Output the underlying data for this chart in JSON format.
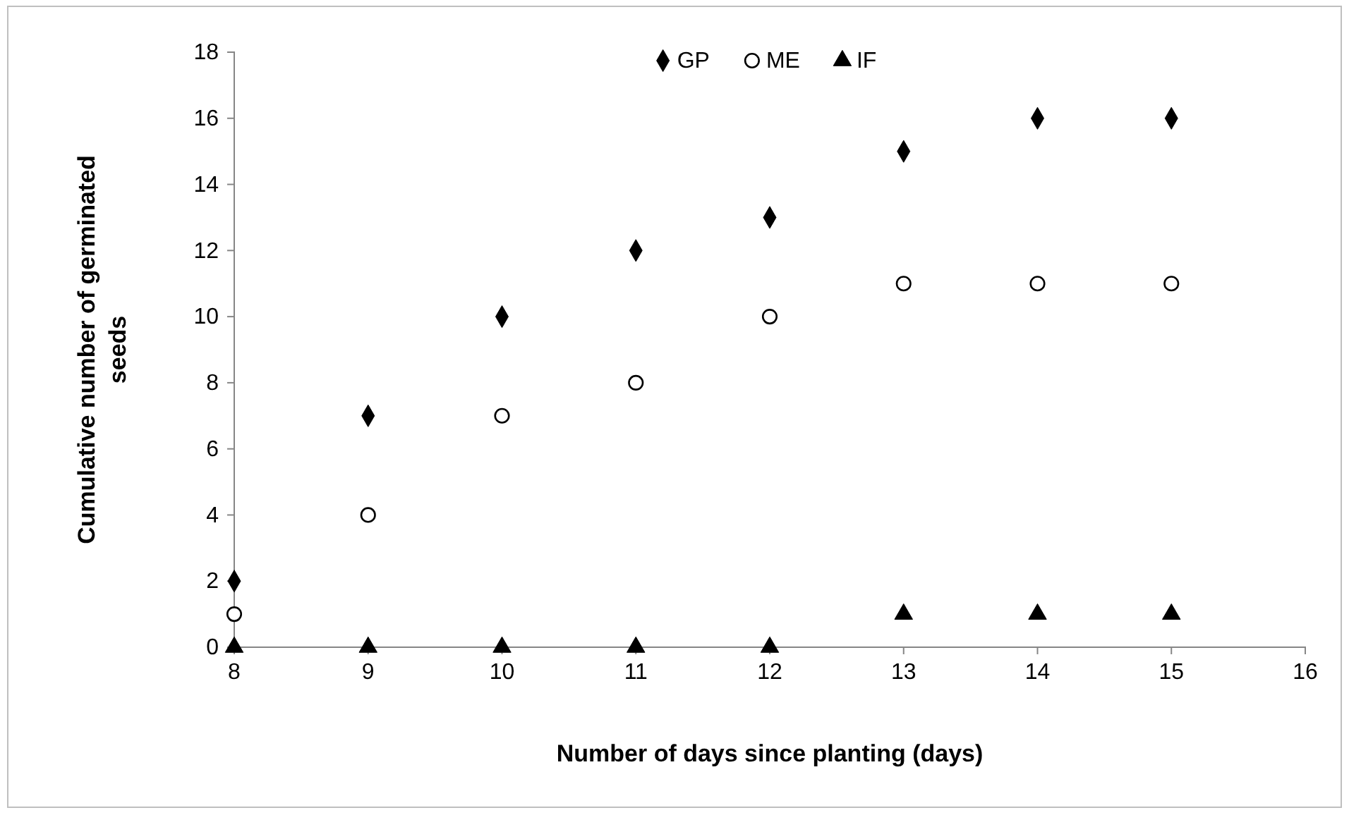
{
  "chart_data": {
    "type": "scatter",
    "xlabel": "Number of days since planting (days)",
    "ylabel": "Cumulative number of germinated seeds",
    "x": [
      8,
      9,
      10,
      11,
      12,
      13,
      14,
      15
    ],
    "series": [
      {
        "name": "GP",
        "color": "#000000",
        "marker": "diamond",
        "values": [
          2,
          7,
          10,
          12,
          13,
          15,
          16,
          16
        ]
      },
      {
        "name": "ME",
        "color": "#000000",
        "marker": "circle",
        "values": [
          1,
          4,
          7,
          8,
          10,
          11,
          11,
          11
        ]
      },
      {
        "name": "IF",
        "color": "#000000",
        "marker": "triangle",
        "values": [
          0,
          0,
          0,
          0,
          0,
          1,
          1,
          1
        ]
      }
    ],
    "xlim": [
      8,
      16
    ],
    "xticks": [
      8,
      9,
      10,
      11,
      12,
      13,
      14,
      15,
      16
    ],
    "ylim": [
      0,
      18
    ],
    "yticks": [
      0,
      2,
      4,
      6,
      8,
      10,
      12,
      14,
      16,
      18
    ],
    "grid": false,
    "legend": "top"
  }
}
